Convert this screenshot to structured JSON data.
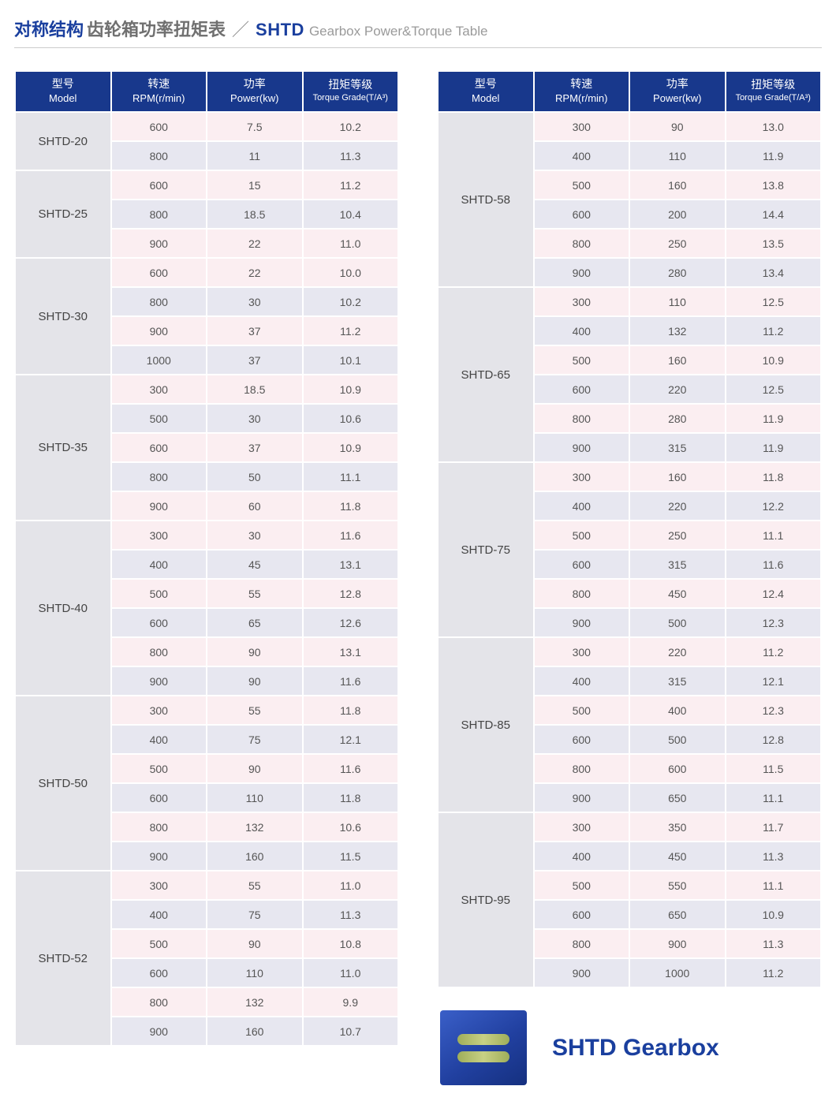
{
  "title": {
    "cn_blue": "对称结构",
    "cn_gray": "齿轮箱功率扭矩表",
    "slash": "／",
    "en_code": "SHTD",
    "en_gray": "Gearbox Power&Torque Table"
  },
  "headers": {
    "model_cn": "型号",
    "model_en": "Model",
    "rpm_cn": "转速",
    "rpm_en": "RPM(r/min)",
    "power_cn": "功率",
    "power_en": "Power(kw)",
    "torque_cn": "扭矩等级",
    "torque_en": "Torque Grade(T/A³)"
  },
  "colors": {
    "header_bg": "#18388c",
    "header_fg": "#ffffff",
    "model_bg": "#e4e4e9",
    "row_even": "#fbeef1",
    "row_odd": "#e7e7f0",
    "title_blue": "#1a3f9e"
  },
  "left_groups": [
    {
      "model": "SHTD-20",
      "rows": [
        {
          "rpm": "600",
          "power": "7.5",
          "torque": "10.2"
        },
        {
          "rpm": "800",
          "power": "11",
          "torque": "11.3"
        }
      ]
    },
    {
      "model": "SHTD-25",
      "rows": [
        {
          "rpm": "600",
          "power": "15",
          "torque": "11.2"
        },
        {
          "rpm": "800",
          "power": "18.5",
          "torque": "10.4"
        },
        {
          "rpm": "900",
          "power": "22",
          "torque": "11.0"
        }
      ]
    },
    {
      "model": "SHTD-30",
      "rows": [
        {
          "rpm": "600",
          "power": "22",
          "torque": "10.0"
        },
        {
          "rpm": "800",
          "power": "30",
          "torque": "10.2"
        },
        {
          "rpm": "900",
          "power": "37",
          "torque": "11.2"
        },
        {
          "rpm": "1000",
          "power": "37",
          "torque": "10.1"
        }
      ]
    },
    {
      "model": "SHTD-35",
      "rows": [
        {
          "rpm": "300",
          "power": "18.5",
          "torque": "10.9"
        },
        {
          "rpm": "500",
          "power": "30",
          "torque": "10.6"
        },
        {
          "rpm": "600",
          "power": "37",
          "torque": "10.9"
        },
        {
          "rpm": "800",
          "power": "50",
          "torque": "11.1"
        },
        {
          "rpm": "900",
          "power": "60",
          "torque": "11.8"
        }
      ]
    },
    {
      "model": "SHTD-40",
      "rows": [
        {
          "rpm": "300",
          "power": "30",
          "torque": "11.6"
        },
        {
          "rpm": "400",
          "power": "45",
          "torque": "13.1"
        },
        {
          "rpm": "500",
          "power": "55",
          "torque": "12.8"
        },
        {
          "rpm": "600",
          "power": "65",
          "torque": "12.6"
        },
        {
          "rpm": "800",
          "power": "90",
          "torque": "13.1"
        },
        {
          "rpm": "900",
          "power": "90",
          "torque": "11.6"
        }
      ]
    },
    {
      "model": "SHTD-50",
      "rows": [
        {
          "rpm": "300",
          "power": "55",
          "torque": "11.8"
        },
        {
          "rpm": "400",
          "power": "75",
          "torque": "12.1"
        },
        {
          "rpm": "500",
          "power": "90",
          "torque": "11.6"
        },
        {
          "rpm": "600",
          "power": "110",
          "torque": "11.8"
        },
        {
          "rpm": "800",
          "power": "132",
          "torque": "10.6"
        },
        {
          "rpm": "900",
          "power": "160",
          "torque": "11.5"
        }
      ]
    },
    {
      "model": "SHTD-52",
      "rows": [
        {
          "rpm": "300",
          "power": "55",
          "torque": "11.0"
        },
        {
          "rpm": "400",
          "power": "75",
          "torque": "11.3"
        },
        {
          "rpm": "500",
          "power": "90",
          "torque": "10.8"
        },
        {
          "rpm": "600",
          "power": "110",
          "torque": "11.0"
        },
        {
          "rpm": "800",
          "power": "132",
          "torque": "9.9"
        },
        {
          "rpm": "900",
          "power": "160",
          "torque": "10.7"
        }
      ]
    }
  ],
  "right_groups": [
    {
      "model": "SHTD-58",
      "rows": [
        {
          "rpm": "300",
          "power": "90",
          "torque": "13.0"
        },
        {
          "rpm": "400",
          "power": "110",
          "torque": "11.9"
        },
        {
          "rpm": "500",
          "power": "160",
          "torque": "13.8"
        },
        {
          "rpm": "600",
          "power": "200",
          "torque": "14.4"
        },
        {
          "rpm": "800",
          "power": "250",
          "torque": "13.5"
        },
        {
          "rpm": "900",
          "power": "280",
          "torque": "13.4"
        }
      ]
    },
    {
      "model": "SHTD-65",
      "rows": [
        {
          "rpm": "300",
          "power": "110",
          "torque": "12.5"
        },
        {
          "rpm": "400",
          "power": "132",
          "torque": "11.2"
        },
        {
          "rpm": "500",
          "power": "160",
          "torque": "10.9"
        },
        {
          "rpm": "600",
          "power": "220",
          "torque": "12.5"
        },
        {
          "rpm": "800",
          "power": "280",
          "torque": "11.9"
        },
        {
          "rpm": "900",
          "power": "315",
          "torque": "11.9"
        }
      ]
    },
    {
      "model": "SHTD-75",
      "rows": [
        {
          "rpm": "300",
          "power": "160",
          "torque": "11.8"
        },
        {
          "rpm": "400",
          "power": "220",
          "torque": "12.2"
        },
        {
          "rpm": "500",
          "power": "250",
          "torque": "11.1"
        },
        {
          "rpm": "600",
          "power": "315",
          "torque": "11.6"
        },
        {
          "rpm": "800",
          "power": "450",
          "torque": "12.4"
        },
        {
          "rpm": "900",
          "power": "500",
          "torque": "12.3"
        }
      ]
    },
    {
      "model": "SHTD-85",
      "rows": [
        {
          "rpm": "300",
          "power": "220",
          "torque": "11.2"
        },
        {
          "rpm": "400",
          "power": "315",
          "torque": "12.1"
        },
        {
          "rpm": "500",
          "power": "400",
          "torque": "12.3"
        },
        {
          "rpm": "600",
          "power": "500",
          "torque": "12.8"
        },
        {
          "rpm": "800",
          "power": "600",
          "torque": "11.5"
        },
        {
          "rpm": "900",
          "power": "650",
          "torque": "11.1"
        }
      ]
    },
    {
      "model": "SHTD-95",
      "rows": [
        {
          "rpm": "300",
          "power": "350",
          "torque": "11.7"
        },
        {
          "rpm": "400",
          "power": "450",
          "torque": "11.3"
        },
        {
          "rpm": "500",
          "power": "550",
          "torque": "11.1"
        },
        {
          "rpm": "600",
          "power": "650",
          "torque": "10.9"
        },
        {
          "rpm": "800",
          "power": "900",
          "torque": "11.3"
        },
        {
          "rpm": "900",
          "power": "1000",
          "torque": "11.2"
        }
      ]
    }
  ],
  "footer": {
    "label": "SHTD Gearbox"
  }
}
